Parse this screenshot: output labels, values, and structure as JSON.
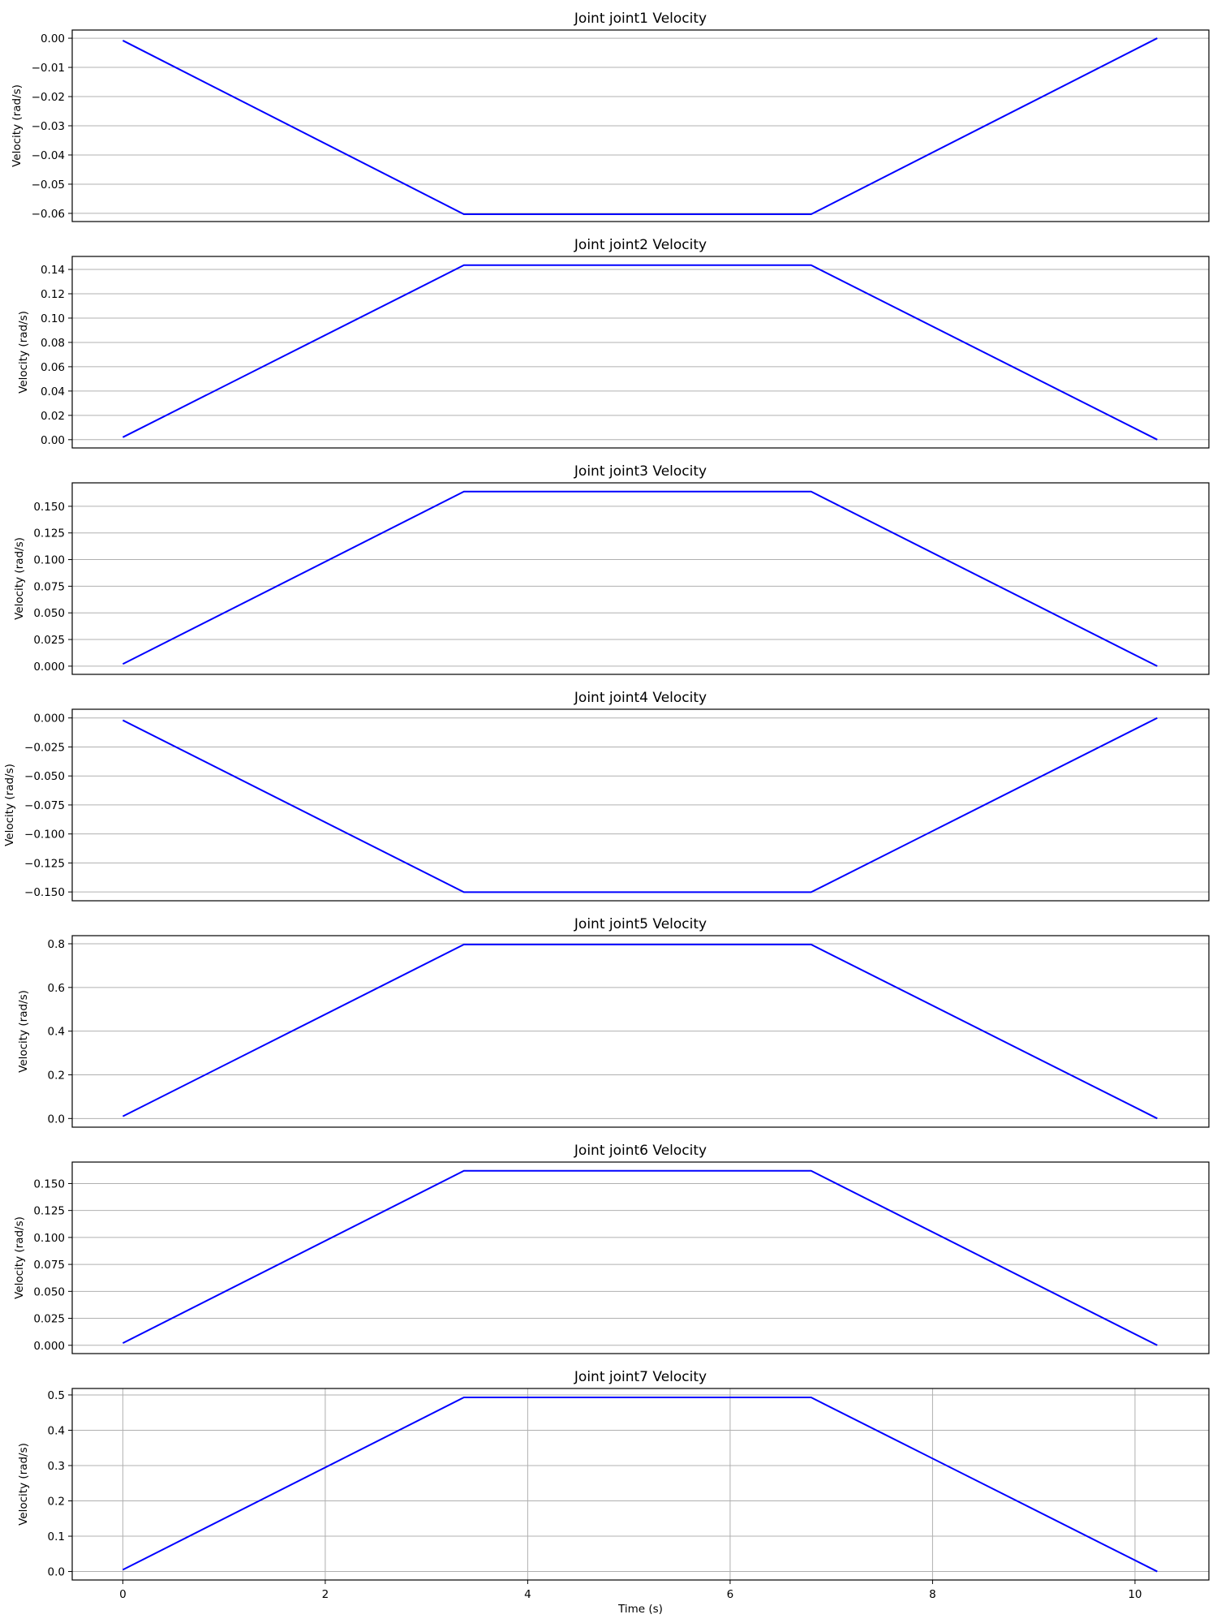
{
  "chart_data": [
    {
      "type": "line",
      "title": "Joint joint1 Velocity",
      "ylabel": "Velocity (rad/s)",
      "xlabel": "",
      "xlim": [
        -0.5,
        10.73
      ],
      "ylim": [
        -0.0628,
        0.0028
      ],
      "yticks": [
        0.0,
        -0.01,
        -0.02,
        -0.03,
        -0.04,
        -0.05,
        -0.06
      ],
      "ytick_labels": [
        "0.00",
        "−0.01",
        "−0.02",
        "−0.03",
        "−0.04",
        "−0.05",
        "−0.06"
      ],
      "grid": "y",
      "series": [
        {
          "color": "#0000ff",
          "x": [
            0,
            3.37,
            6.8,
            10.22
          ],
          "y": [
            -0.0008,
            -0.0603,
            -0.0603,
            0.0
          ]
        }
      ]
    },
    {
      "type": "line",
      "title": "Joint joint2 Velocity",
      "ylabel": "Velocity (rad/s)",
      "xlabel": "",
      "xlim": [
        -0.5,
        10.73
      ],
      "ylim": [
        -0.0068,
        0.1507
      ],
      "yticks": [
        0.0,
        0.02,
        0.04,
        0.06,
        0.08,
        0.1,
        0.12,
        0.14
      ],
      "ytick_labels": [
        "0.00",
        "0.02",
        "0.04",
        "0.06",
        "0.08",
        "0.10",
        "0.12",
        "0.14"
      ],
      "grid": "y",
      "series": [
        {
          "color": "#0000ff",
          "x": [
            0,
            3.37,
            6.8,
            10.22
          ],
          "y": [
            0.002,
            0.1435,
            0.1435,
            0.0
          ]
        }
      ]
    },
    {
      "type": "line",
      "title": "Joint joint3 Velocity",
      "ylabel": "Velocity (rad/s)",
      "xlabel": "",
      "xlim": [
        -0.5,
        10.73
      ],
      "ylim": [
        -0.0077,
        0.172
      ],
      "yticks": [
        0.0,
        0.025,
        0.05,
        0.075,
        0.1,
        0.125,
        0.15
      ],
      "ytick_labels": [
        "0.000",
        "0.025",
        "0.050",
        "0.075",
        "0.100",
        "0.125",
        "0.150"
      ],
      "grid": "y",
      "series": [
        {
          "color": "#0000ff",
          "x": [
            0,
            3.37,
            6.8,
            10.22
          ],
          "y": [
            0.002,
            0.1638,
            0.1638,
            0.0
          ]
        }
      ]
    },
    {
      "type": "line",
      "title": "Joint joint4 Velocity",
      "ylabel": "Velocity (rad/s)",
      "xlabel": "",
      "xlim": [
        -0.5,
        10.73
      ],
      "ylim": [
        -0.1576,
        0.0075
      ],
      "yticks": [
        0.0,
        -0.025,
        -0.05,
        -0.075,
        -0.1,
        -0.125,
        -0.15
      ],
      "ytick_labels": [
        "0.000",
        "−0.025",
        "−0.050",
        "−0.075",
        "−0.100",
        "−0.125",
        "−0.150"
      ],
      "grid": "y",
      "series": [
        {
          "color": "#0000ff",
          "x": [
            0,
            3.37,
            6.8,
            10.22
          ],
          "y": [
            -0.002,
            -0.1502,
            -0.1502,
            0.0
          ]
        }
      ]
    },
    {
      "type": "line",
      "title": "Joint joint5 Velocity",
      "ylabel": "Velocity (rad/s)",
      "xlabel": "",
      "xlim": [
        -0.5,
        10.73
      ],
      "ylim": [
        -0.0397,
        0.8371
      ],
      "yticks": [
        0.0,
        0.2,
        0.4,
        0.6,
        0.8
      ],
      "ytick_labels": [
        "0.0",
        "0.2",
        "0.4",
        "0.6",
        "0.8"
      ],
      "grid": "y",
      "series": [
        {
          "color": "#0000ff",
          "x": [
            0,
            3.37,
            6.8,
            10.22
          ],
          "y": [
            0.01,
            0.7966,
            0.7966,
            0.0
          ]
        }
      ]
    },
    {
      "type": "line",
      "title": "Joint joint6 Velocity",
      "ylabel": "Velocity (rad/s)",
      "xlabel": "",
      "xlim": [
        -0.5,
        10.73
      ],
      "ylim": [
        -0.0077,
        0.1699
      ],
      "yticks": [
        0.0,
        0.025,
        0.05,
        0.075,
        0.1,
        0.125,
        0.15
      ],
      "ytick_labels": [
        "0.000",
        "0.025",
        "0.050",
        "0.075",
        "0.100",
        "0.125",
        "0.150"
      ],
      "grid": "y",
      "series": [
        {
          "color": "#0000ff",
          "x": [
            0,
            3.37,
            6.8,
            10.22
          ],
          "y": [
            0.002,
            0.1618,
            0.1618,
            0.0
          ]
        }
      ]
    },
    {
      "type": "line",
      "title": "Joint joint7 Velocity",
      "ylabel": "Velocity (rad/s)",
      "xlabel": "Time (s)",
      "xlim": [
        -0.5,
        10.73
      ],
      "ylim": [
        -0.024,
        0.5183
      ],
      "yticks": [
        0.0,
        0.1,
        0.2,
        0.3,
        0.4,
        0.5
      ],
      "ytick_labels": [
        "0.0",
        "0.1",
        "0.2",
        "0.3",
        "0.4",
        "0.5"
      ],
      "xticks": [
        0,
        2,
        4,
        6,
        8,
        10
      ],
      "xtick_labels": [
        "0",
        "2",
        "4",
        "6",
        "8",
        "10"
      ],
      "grid": "xy",
      "series": [
        {
          "color": "#0000ff",
          "x": [
            0,
            3.37,
            6.8,
            10.22
          ],
          "y": [
            0.005,
            0.493,
            0.493,
            0.0
          ]
        }
      ]
    }
  ]
}
